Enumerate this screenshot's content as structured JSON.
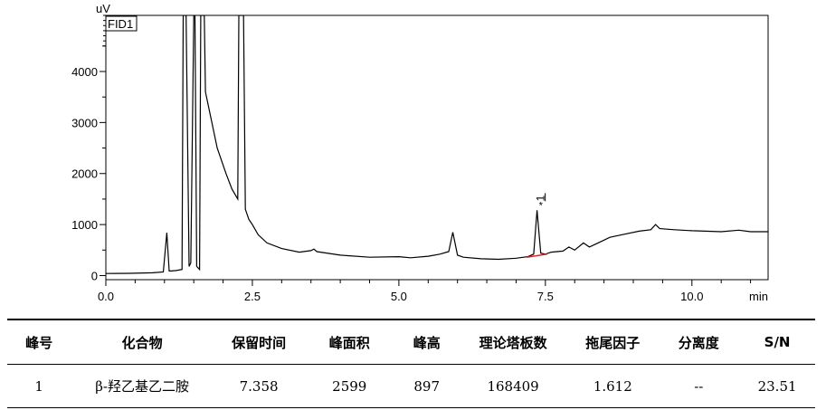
{
  "chart_data": {
    "type": "line",
    "y_unit_label": "uV",
    "x_unit_label": "min",
    "legend_box": "FID1",
    "xlim": [
      0,
      11.3
    ],
    "ylim": [
      -80,
      5100
    ],
    "x_ticks": [
      0.0,
      2.5,
      5.0,
      7.5,
      10.0
    ],
    "x_tick_labels": [
      "0.0",
      "2.5",
      "5.0",
      "7.5",
      "10.0"
    ],
    "y_ticks": [
      0,
      1000,
      2000,
      3000,
      4000
    ],
    "y_tick_labels": [
      "0",
      "1000",
      "2000",
      "3000",
      "4000"
    ],
    "x_minor_step": 0.5,
    "y_minor_step": 500,
    "line_color": "#000000",
    "baseline_color": "#e02020",
    "peak_marker": {
      "x": 7.358,
      "y": 1280,
      "label": "1"
    },
    "integration_baseline": [
      [
        7.18,
        360
      ],
      [
        7.53,
        420
      ]
    ],
    "series": [
      {
        "x": [
          0.0,
          0.4,
          0.8,
          0.98,
          1.04,
          1.08,
          1.12,
          1.2,
          1.3,
          1.32,
          1.37,
          1.42,
          1.45,
          1.5,
          1.52,
          1.55,
          1.6,
          1.62,
          1.68,
          1.7,
          1.9,
          2.05,
          2.15,
          2.25,
          2.27,
          2.35,
          2.38,
          2.44,
          2.5,
          2.6,
          2.75,
          3.0,
          3.3,
          3.5,
          3.55,
          3.6,
          4.0,
          4.5,
          5.0,
          5.2,
          5.5,
          5.7,
          5.85,
          5.92,
          6.0,
          6.1,
          6.4,
          6.7,
          7.0,
          7.2,
          7.3,
          7.358,
          7.42,
          7.5,
          7.6,
          7.8,
          7.9,
          8.0,
          8.15,
          8.25,
          8.4,
          8.6,
          8.8,
          9.1,
          9.3,
          9.38,
          9.45,
          9.7,
          10.0,
          10.5,
          10.8,
          11.0,
          11.3
        ],
        "values": [
          40,
          45,
          55,
          70,
          840,
          90,
          90,
          100,
          120,
          5100,
          5100,
          180,
          250,
          5100,
          5100,
          180,
          120,
          5100,
          5100,
          3600,
          2500,
          2000,
          1700,
          1500,
          5100,
          5100,
          1300,
          1100,
          1000,
          800,
          640,
          530,
          460,
          490,
          520,
          470,
          400,
          360,
          370,
          350,
          380,
          420,
          470,
          850,
          400,
          360,
          330,
          320,
          340,
          370,
          420,
          1280,
          440,
          420,
          460,
          480,
          560,
          500,
          640,
          560,
          640,
          750,
          800,
          870,
          900,
          1000,
          920,
          900,
          880,
          860,
          890,
          860,
          860
        ]
      }
    ]
  },
  "table": {
    "headers": [
      "峰号",
      "化合物",
      "保留时间",
      "峰面积",
      "峰高",
      "理论塔板数",
      "拖尾因子",
      "分离度",
      "S/N"
    ],
    "rows": [
      [
        "1",
        "β-羟乙基乙二胺",
        "7.358",
        "2599",
        "897",
        "168409",
        "1.612",
        "--",
        "23.51"
      ]
    ]
  }
}
